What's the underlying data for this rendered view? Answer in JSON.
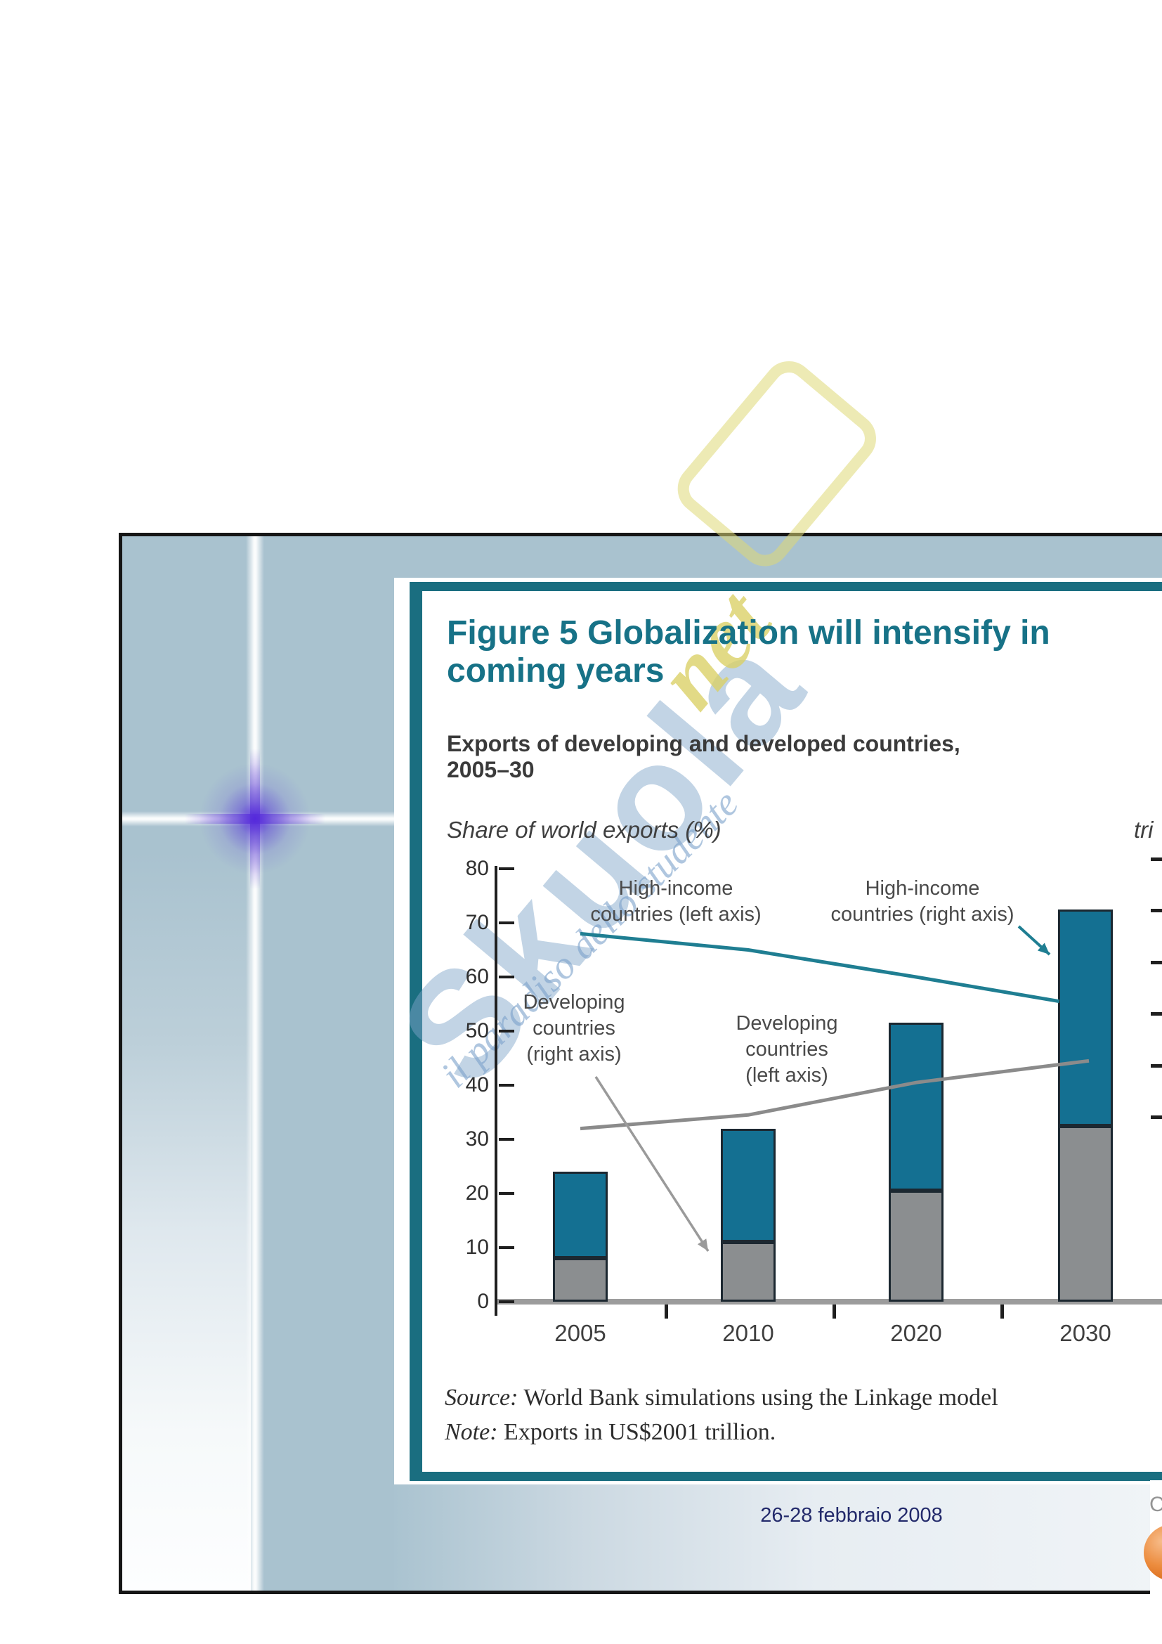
{
  "figure": {
    "title": "Figure 5  Globalization will intensify in\ncoming years",
    "subtitle": "Exports of developing and developed countries,\n2005–30",
    "left_axis_caption": "Share of world exports (%)",
    "right_axis_caption_fragment": "tri",
    "source_label": "Source:",
    "source_text": " World Bank simulations using the Linkage model",
    "note_label": "Note:",
    "note_text": " Exports in US$2001 trillion."
  },
  "chart_data": {
    "type": "bar",
    "subtype": "stacked-bars-with-two-lines",
    "title": "Exports of developing and developed countries, 2005-30",
    "categories": [
      "2005",
      "2010",
      "2020",
      "2030"
    ],
    "series": [
      {
        "name": "Developing countries exports (bars, right axis)",
        "type": "bar",
        "stack_order": 0,
        "color": "#8b8e90",
        "values_in_left_axis_units": [
          8,
          11,
          20.5,
          32.5
        ]
      },
      {
        "name": "High-income countries exports (bars, right axis)",
        "type": "bar",
        "stack_order": 1,
        "color": "#147092",
        "values_in_left_axis_units": [
          16,
          21,
          31,
          40
        ]
      },
      {
        "name": "High-income countries (left axis)",
        "type": "line",
        "color": "#1f7e92",
        "values": [
          68,
          65,
          60,
          55.5
        ]
      },
      {
        "name": "Developing countries (left axis)",
        "type": "line",
        "color": "#8b8b8b",
        "values": [
          32,
          34.5,
          40.5,
          44.5
        ]
      }
    ],
    "bar_totals_in_left_axis_units": [
      24,
      32,
      51.5,
      72.5
    ],
    "left_axis": {
      "label": "Share of world exports (%)",
      "range": [
        0,
        80
      ],
      "ticks": [
        80,
        70,
        60,
        50,
        40,
        30,
        20,
        10,
        0
      ]
    },
    "right_axis": {
      "visible_label_fragment": "tri",
      "tick_mark_count": 6,
      "labels_cut_off": true
    },
    "grid": false,
    "annotations": [
      {
        "id": "high-income-left",
        "text": "High-income\ncountries (left axis)"
      },
      {
        "id": "high-income-right",
        "text": "High-income\ncountries (right axis)"
      },
      {
        "id": "developing-right",
        "text": "Developing\ncountries\n(right axis)"
      },
      {
        "id": "developing-left",
        "text": "Developing\ncountries\n(left axis)"
      }
    ]
  },
  "footer": {
    "date": "26-28 febbraio 2008",
    "corner_fragment": "C"
  },
  "watermark": {
    "brand": "Skuola",
    "net": "net",
    "slogan": "il paradiso dello studente"
  },
  "colors": {
    "slide_background": "#a9c2cf",
    "panel_border": "#1a6e80",
    "title": "#177287",
    "bar_teal": "#147092",
    "bar_gray": "#8b8e90",
    "line_teal": "#1f7e92",
    "line_gray": "#8b8b8b",
    "date_text": "#232a6b",
    "ball_orange": "#ec8c3e",
    "cross_purple": "#5a28dc"
  }
}
